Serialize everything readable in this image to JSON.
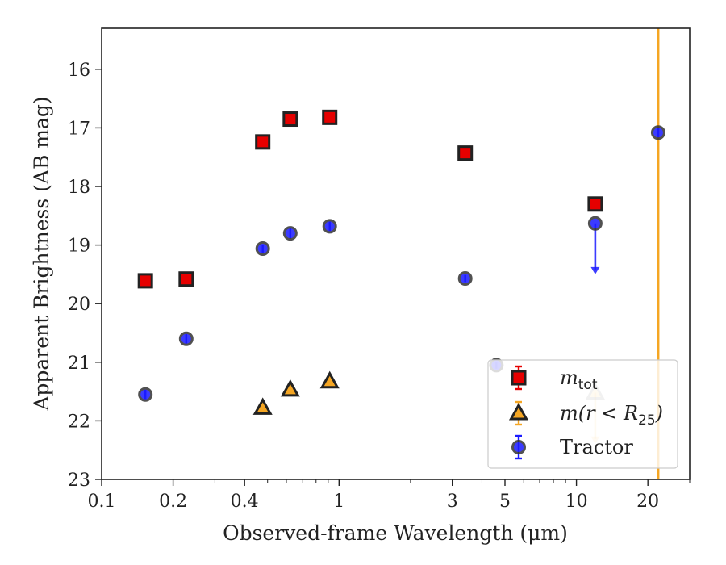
{
  "chart_data": {
    "type": "scatter",
    "xlabel": "Observed-frame Wavelength (μm)",
    "ylabel": "Apparent Brightness (AB mag)",
    "x_scale": "log",
    "xlim": [
      0.1,
      30
    ],
    "ylim": [
      23,
      15.3
    ],
    "y_inverted": true,
    "x_ticks": [
      {
        "value": 0.1,
        "label": "0.1"
      },
      {
        "value": 0.2,
        "label": "0.2"
      },
      {
        "value": 0.4,
        "label": "0.4"
      },
      {
        "value": 1,
        "label": "1"
      },
      {
        "value": 3,
        "label": "3"
      },
      {
        "value": 5,
        "label": "5"
      },
      {
        "value": 10,
        "label": "10"
      },
      {
        "value": 20,
        "label": "20"
      }
    ],
    "x_minor_ticks": [
      0.3,
      0.5,
      0.6,
      0.7,
      0.8,
      0.9,
      2,
      4,
      6,
      7,
      8,
      9,
      30
    ],
    "y_ticks": [
      16,
      17,
      18,
      19,
      20,
      21,
      22,
      23
    ],
    "vertical_line": {
      "x": 22.1,
      "color": "#f5a623"
    },
    "legend": {
      "position": "lower-right",
      "entries": [
        {
          "key": "m_tot",
          "base": "m",
          "sub": "tot",
          "suffix": ""
        },
        {
          "key": "m_r25",
          "base": "m(r < R",
          "sub": "25",
          "suffix": ")"
        },
        {
          "key": "tractor",
          "base": "Tractor",
          "sub": "",
          "suffix": ""
        }
      ]
    },
    "series": [
      {
        "key": "m_tot",
        "marker": "square",
        "color": "#e60000",
        "points": [
          {
            "x": 0.1528,
            "y": 19.61
          },
          {
            "x": 0.2271,
            "y": 19.58
          },
          {
            "x": 0.477,
            "y": 17.24
          },
          {
            "x": 0.6231,
            "y": 16.85
          },
          {
            "x": 0.9134,
            "y": 16.82
          },
          {
            "x": 3.4,
            "y": 17.43
          },
          {
            "x": 12.0,
            "y": 18.3
          }
        ]
      },
      {
        "key": "m_r25",
        "marker": "triangle",
        "color": "#f5a623",
        "points": [
          {
            "x": 0.477,
            "y": 21.78
          },
          {
            "x": 0.6231,
            "y": 21.47
          },
          {
            "x": 0.9134,
            "y": 21.33
          },
          {
            "x": 12.0,
            "y": 21.52,
            "upper_limit": true,
            "faint": true
          }
        ]
      },
      {
        "key": "tractor",
        "marker": "circle",
        "color": "#1a1aff",
        "points": [
          {
            "x": 0.1528,
            "y": 21.55,
            "err": 0.08
          },
          {
            "x": 0.2271,
            "y": 20.6,
            "err": 0.08
          },
          {
            "x": 0.477,
            "y": 19.06,
            "err": 0.07
          },
          {
            "x": 0.6231,
            "y": 18.8,
            "err": 0.09
          },
          {
            "x": 0.9134,
            "y": 18.68,
            "err": 0.08
          },
          {
            "x": 3.4,
            "y": 19.57,
            "err": 0.06
          },
          {
            "x": 4.6,
            "y": 21.05,
            "err": 0.06
          },
          {
            "x": 12.0,
            "y": 18.63,
            "upper_limit": true
          },
          {
            "x": 22.1,
            "y": 17.08,
            "err": 0.08
          }
        ]
      }
    ]
  }
}
